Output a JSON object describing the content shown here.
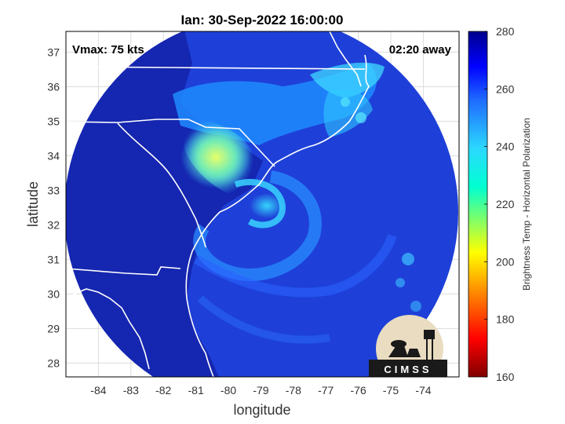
{
  "title": "Ian: 30-Sep-2022 16:00:00",
  "vmax_label": "Vmax: 75 kts",
  "time_label": "02:20 away",
  "xlabel": "longitude",
  "ylabel": "latitude",
  "x_ticks": [
    "-84",
    "-83",
    "-82",
    "-81",
    "-80",
    "-79",
    "-78",
    "-77",
    "-76",
    "-75",
    "-74"
  ],
  "y_ticks": [
    "28",
    "29",
    "30",
    "31",
    "32",
    "33",
    "34",
    "35",
    "36",
    "37"
  ],
  "xlim": [
    -85.0,
    -72.9
  ],
  "ylim": [
    27.6,
    37.6
  ],
  "colorbar": {
    "label": "Brightness Temp - Horizontal Polarization",
    "ticks": [
      "160",
      "180",
      "200",
      "220",
      "240",
      "260",
      "280"
    ],
    "range": [
      160,
      280
    ],
    "colormap": "jet"
  },
  "logo": {
    "text": "CIMSS"
  },
  "colors": {
    "frame": "#000000",
    "grid": "#dcdcdc",
    "land": "#1a2cbd",
    "ocean": "#1e40d8",
    "border": "#ffffff"
  }
}
